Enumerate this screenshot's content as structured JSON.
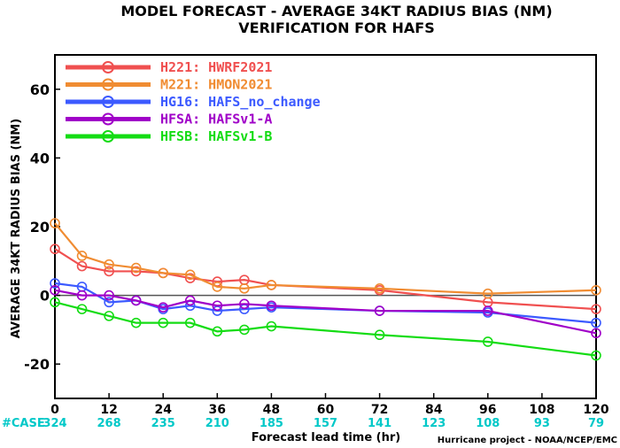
{
  "chart_data": {
    "type": "line",
    "title": "MODEL FORECAST - AVERAGE 34KT RADIUS BIAS (NM)",
    "subtitle": "VERIFICATION FOR HAFS",
    "xlabel": "Forecast lead time (hr)",
    "ylabel": "AVERAGE 34KT RADIUS BIAS (NM)",
    "xlim": [
      0,
      120
    ],
    "ylim": [
      -30,
      70
    ],
    "xticks": [
      0,
      12,
      24,
      36,
      48,
      60,
      72,
      84,
      96,
      108,
      120
    ],
    "yticks": [
      -20,
      0,
      20,
      40,
      60
    ],
    "zero_line": true,
    "legend_position": "top-left",
    "case_label": "#CASE",
    "case_counts": [
      {
        "x": 0,
        "n": "324"
      },
      {
        "x": 12,
        "n": "268"
      },
      {
        "x": 24,
        "n": "235"
      },
      {
        "x": 36,
        "n": "210"
      },
      {
        "x": 48,
        "n": "185"
      },
      {
        "x": 60,
        "n": "157"
      },
      {
        "x": 72,
        "n": "141"
      },
      {
        "x": 84,
        "n": "123"
      },
      {
        "x": 96,
        "n": "108"
      },
      {
        "x": 108,
        "n": "93"
      },
      {
        "x": 120,
        "n": "79"
      }
    ],
    "case_color": "#00c8c8",
    "credit": "Hurricane project - NOAA/NCEP/EMC",
    "series": [
      {
        "name": "H221: HWRF2021",
        "color": "#f05050",
        "points": [
          [
            0,
            13.5
          ],
          [
            6,
            8.5
          ],
          [
            12,
            7
          ],
          [
            18,
            7
          ],
          [
            24,
            6.5
          ],
          [
            30,
            5
          ],
          [
            36,
            4
          ],
          [
            42,
            4.5
          ],
          [
            48,
            3
          ],
          [
            72,
            1.5
          ],
          [
            96,
            -2
          ],
          [
            120,
            -4
          ]
        ]
      },
      {
        "name": "M221: HMON2021",
        "color": "#f08c32",
        "points": [
          [
            0,
            21
          ],
          [
            6,
            11.5
          ],
          [
            12,
            9
          ],
          [
            18,
            8
          ],
          [
            24,
            6.5
          ],
          [
            30,
            6
          ],
          [
            36,
            2.5
          ],
          [
            42,
            2
          ],
          [
            48,
            3
          ],
          [
            72,
            2
          ],
          [
            96,
            0.5
          ],
          [
            120,
            1.5
          ]
        ]
      },
      {
        "name": "HG16: HAFS_no_change",
        "color": "#3c5aff",
        "points": [
          [
            0,
            3.5
          ],
          [
            6,
            2.5
          ],
          [
            12,
            -2
          ],
          [
            18,
            -1.5
          ],
          [
            24,
            -4
          ],
          [
            30,
            -3
          ],
          [
            36,
            -4.5
          ],
          [
            42,
            -4
          ],
          [
            48,
            -3.5
          ],
          [
            72,
            -4.5
          ],
          [
            96,
            -5
          ],
          [
            120,
            -8
          ]
        ]
      },
      {
        "name": "HFSA: HAFSv1-A",
        "color": "#a000c8",
        "points": [
          [
            0,
            1.5
          ],
          [
            6,
            0
          ],
          [
            12,
            0
          ],
          [
            18,
            -1.5
          ],
          [
            24,
            -3.5
          ],
          [
            30,
            -1.5
          ],
          [
            36,
            -3
          ],
          [
            42,
            -2.5
          ],
          [
            48,
            -3
          ],
          [
            72,
            -4.5
          ],
          [
            96,
            -4.5
          ],
          [
            120,
            -11
          ]
        ]
      },
      {
        "name": "HFSB: HAFSv1-B",
        "color": "#14dc14",
        "points": [
          [
            0,
            -2
          ],
          [
            6,
            -4
          ],
          [
            12,
            -6
          ],
          [
            18,
            -8
          ],
          [
            24,
            -8
          ],
          [
            30,
            -8
          ],
          [
            36,
            -10.5
          ],
          [
            42,
            -10
          ],
          [
            48,
            -9
          ],
          [
            72,
            -11.5
          ],
          [
            96,
            -13.5
          ],
          [
            120,
            -17.5
          ]
        ]
      }
    ]
  }
}
